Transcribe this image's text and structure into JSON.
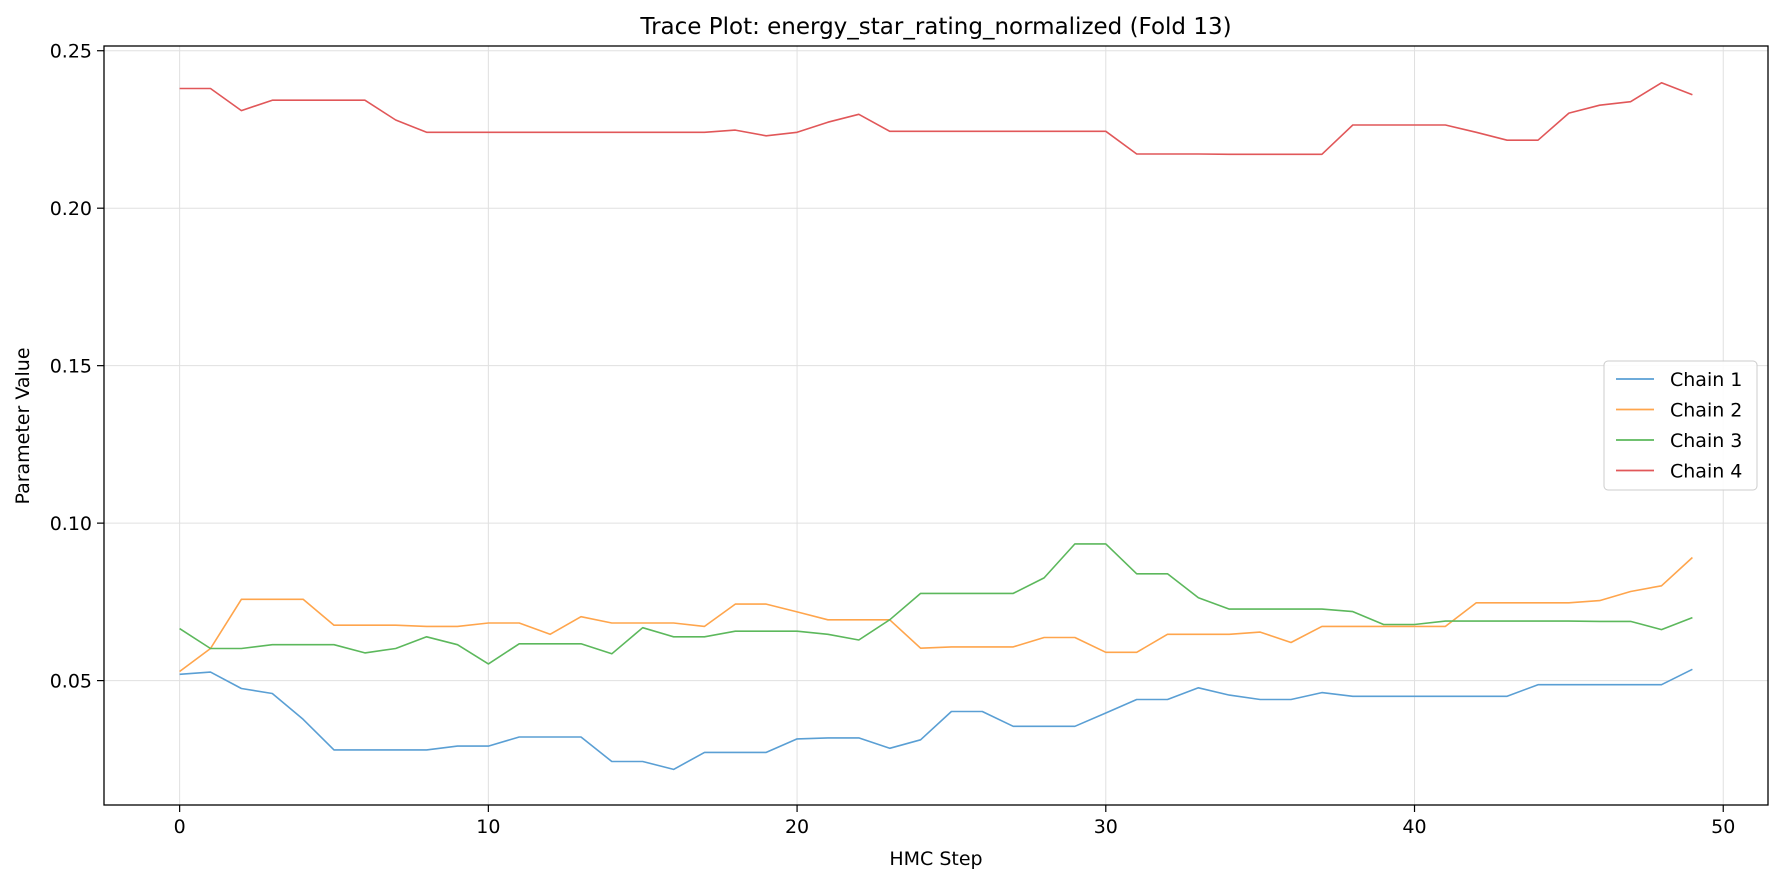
{
  "chart_data": {
    "type": "line",
    "title": "Trace Plot: energy_star_rating_normalized (Fold 13)",
    "xlabel": "HMC Step",
    "ylabel": "Parameter Value",
    "xlim": [
      -2.45,
      51.45
    ],
    "ylim": [
      0.0105,
      0.2515
    ],
    "xticks": [
      0,
      10,
      20,
      30,
      40,
      50
    ],
    "yticks": [
      0.05,
      0.1,
      0.15,
      0.2,
      0.25
    ],
    "ytick_labels": [
      "0.05",
      "0.10",
      "0.15",
      "0.20",
      "0.25"
    ],
    "grid": true,
    "legend_position": "center-right",
    "x": [
      0,
      1,
      2,
      3,
      4,
      5,
      6,
      7,
      8,
      9,
      10,
      11,
      12,
      13,
      14,
      15,
      16,
      17,
      18,
      19,
      20,
      21,
      22,
      23,
      24,
      25,
      26,
      27,
      28,
      29,
      30,
      31,
      32,
      33,
      34,
      35,
      36,
      37,
      38,
      39,
      40,
      41,
      42,
      43,
      44,
      45,
      46,
      47,
      48,
      49
    ],
    "series": [
      {
        "name": "Chain 1",
        "color": "#5a9fd4",
        "values": [
          0.052,
          0.0527,
          0.0475,
          0.0459,
          0.0377,
          0.028,
          0.028,
          0.028,
          0.028,
          0.0292,
          0.0292,
          0.0321,
          0.0321,
          0.0321,
          0.0243,
          0.0243,
          0.0218,
          0.0272,
          0.0272,
          0.0272,
          0.0315,
          0.0318,
          0.0318,
          0.0285,
          0.0312,
          0.0402,
          0.0402,
          0.0355,
          0.0355,
          0.0355,
          0.0397,
          0.044,
          0.044,
          0.0477,
          0.0454,
          0.044,
          0.044,
          0.0462,
          0.045,
          0.045,
          0.045,
          0.045,
          0.045,
          0.045,
          0.0487,
          0.0487,
          0.0487,
          0.0487,
          0.0487,
          0.0536
        ]
      },
      {
        "name": "Chain 2",
        "color": "#ffa54c",
        "values": [
          0.0529,
          0.0602,
          0.0758,
          0.0758,
          0.0758,
          0.0676,
          0.0676,
          0.0676,
          0.0672,
          0.0672,
          0.0683,
          0.0683,
          0.0647,
          0.0703,
          0.0683,
          0.0683,
          0.0683,
          0.0672,
          0.0743,
          0.0743,
          0.0718,
          0.0693,
          0.0693,
          0.0693,
          0.0603,
          0.0607,
          0.0607,
          0.0607,
          0.0637,
          0.0637,
          0.059,
          0.059,
          0.0647,
          0.0647,
          0.0647,
          0.0654,
          0.0621,
          0.0672,
          0.0672,
          0.0672,
          0.0672,
          0.0672,
          0.0747,
          0.0747,
          0.0747,
          0.0747,
          0.0754,
          0.0783,
          0.0801,
          0.0891
        ]
      },
      {
        "name": "Chain 3",
        "color": "#5cb85c",
        "values": [
          0.0665,
          0.0602,
          0.0602,
          0.0614,
          0.0614,
          0.0614,
          0.0588,
          0.0602,
          0.0639,
          0.0614,
          0.0553,
          0.0617,
          0.0617,
          0.0617,
          0.0585,
          0.0668,
          0.0639,
          0.0639,
          0.0657,
          0.0657,
          0.0657,
          0.0647,
          0.0629,
          0.0693,
          0.0777,
          0.0777,
          0.0777,
          0.0777,
          0.0826,
          0.0934,
          0.0934,
          0.0839,
          0.0839,
          0.0763,
          0.0727,
          0.0727,
          0.0727,
          0.0727,
          0.0719,
          0.0678,
          0.0678,
          0.0689,
          0.0689,
          0.0689,
          0.0689,
          0.0689,
          0.0688,
          0.0688,
          0.0662,
          0.07
        ]
      },
      {
        "name": "Chain 4",
        "color": "#e15759",
        "values": [
          0.238,
          0.238,
          0.231,
          0.2343,
          0.2343,
          0.2343,
          0.2343,
          0.228,
          0.2241,
          0.2241,
          0.2241,
          0.2241,
          0.2241,
          0.2241,
          0.2241,
          0.2241,
          0.2241,
          0.2241,
          0.2248,
          0.223,
          0.2241,
          0.2273,
          0.2298,
          0.2244,
          0.2244,
          0.2244,
          0.2244,
          0.2244,
          0.2244,
          0.2244,
          0.2244,
          0.2172,
          0.2172,
          0.2172,
          0.2171,
          0.2171,
          0.2171,
          0.2171,
          0.2264,
          0.2264,
          0.2264,
          0.2264,
          0.2241,
          0.2216,
          0.2216,
          0.2302,
          0.2327,
          0.2338,
          0.2398,
          0.236
        ]
      }
    ]
  }
}
